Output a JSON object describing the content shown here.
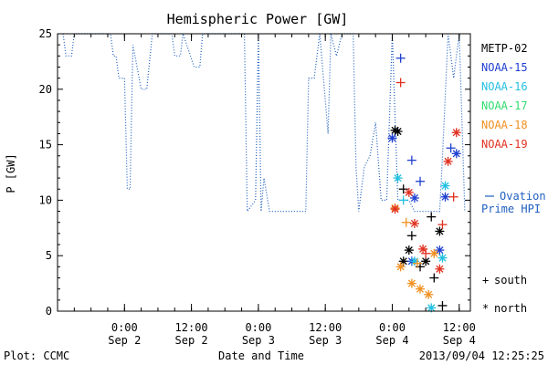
{
  "chart_data": {
    "type": "scatter",
    "title": "Hemispheric Power [GW]",
    "xlabel": "Date and Time",
    "ylabel": "P [GW]",
    "ylim": [
      0,
      25
    ],
    "yticks": [
      0,
      5,
      10,
      15,
      20,
      25
    ],
    "xlim": [
      "2013-09-01 12:00",
      "2013-09-04 14:00"
    ],
    "xticks": [
      {
        "time": "2013-09-02 00:00",
        "label": "0:00",
        "date": "Sep 2"
      },
      {
        "time": "2013-09-02 12:00",
        "label": "12:00",
        "date": "Sep 2"
      },
      {
        "time": "2013-09-03 00:00",
        "label": "0:00",
        "date": "Sep 3"
      },
      {
        "time": "2013-09-03 12:00",
        "label": "12:00",
        "date": "Sep 3"
      },
      {
        "time": "2013-09-04 00:00",
        "label": "0:00",
        "date": "Sep 4"
      },
      {
        "time": "2013-09-04 12:00",
        "label": "12:00",
        "date": "Sep 4"
      }
    ],
    "legend": {
      "placement": "right",
      "satellites": [
        {
          "name": "METP-02",
          "color": "#000000"
        },
        {
          "name": "NOAA-15",
          "color": "#1f3fd0"
        },
        {
          "name": "NOAA-16",
          "color": "#22c0e0"
        },
        {
          "name": "NOAA-17",
          "color": "#30dd70"
        },
        {
          "name": "NOAA-18",
          "color": "#f09020"
        },
        {
          "name": "NOAA-19",
          "color": "#e03020"
        }
      ],
      "ovation_label_1": "Ovation",
      "ovation_label_2": "Prime HPI",
      "ovation_color": "#1f5fbf",
      "south_symbol": "+",
      "south_label": "south",
      "north_symbol": "*",
      "north_label": "north"
    },
    "ovation_series": {
      "name": "Ovation Prime HPI",
      "style": "dotted",
      "points": [
        [
          "2013-09-01 13:00",
          25
        ],
        [
          "2013-09-01 13:30",
          23
        ],
        [
          "2013-09-01 14:30",
          23
        ],
        [
          "2013-09-01 15:00",
          25
        ],
        [
          "2013-09-01 21:30",
          25
        ],
        [
          "2013-09-01 22:00",
          23
        ],
        [
          "2013-09-01 22:30",
          23
        ],
        [
          "2013-09-01 23:00",
          21
        ],
        [
          "2013-09-02 00:00",
          21
        ],
        [
          "2013-09-02 00:30",
          11
        ],
        [
          "2013-09-02 01:00",
          11
        ],
        [
          "2013-09-02 01:30",
          24
        ],
        [
          "2013-09-02 03:00",
          20
        ],
        [
          "2013-09-02 04:00",
          20
        ],
        [
          "2013-09-02 05:00",
          25
        ],
        [
          "2013-09-02 08:30",
          25
        ],
        [
          "2013-09-02 09:00",
          23
        ],
        [
          "2013-09-02 10:00",
          23
        ],
        [
          "2013-09-02 10:30",
          25
        ],
        [
          "2013-09-02 12:30",
          22
        ],
        [
          "2013-09-02 13:30",
          22
        ],
        [
          "2013-09-02 14:00",
          25
        ],
        [
          "2013-09-02 21:30",
          25
        ],
        [
          "2013-09-02 22:00",
          9
        ],
        [
          "2013-09-02 23:30",
          10
        ],
        [
          "2013-09-03 00:00",
          25
        ],
        [
          "2013-09-03 00:30",
          9
        ],
        [
          "2013-09-03 01:00",
          12
        ],
        [
          "2013-09-03 02:00",
          9
        ],
        [
          "2013-09-03 08:30",
          9
        ],
        [
          "2013-09-03 09:00",
          21
        ],
        [
          "2013-09-03 10:00",
          21
        ],
        [
          "2013-09-03 11:00",
          25
        ],
        [
          "2013-09-03 12:30",
          16
        ],
        [
          "2013-09-03 13:00",
          25
        ],
        [
          "2013-09-03 14:00",
          23
        ],
        [
          "2013-09-03 15:00",
          25
        ],
        [
          "2013-09-03 17:00",
          25
        ],
        [
          "2013-09-03 17:30",
          13
        ],
        [
          "2013-09-03 18:00",
          9
        ],
        [
          "2013-09-03 19:00",
          13
        ],
        [
          "2013-09-03 20:00",
          14
        ],
        [
          "2013-09-03 21:00",
          17
        ],
        [
          "2013-09-03 22:00",
          10
        ],
        [
          "2013-09-03 23:00",
          10
        ],
        [
          "2013-09-04 00:00",
          25
        ],
        [
          "2013-09-04 01:00",
          10
        ],
        [
          "2013-09-04 03:00",
          10
        ],
        [
          "2013-09-04 04:00",
          9
        ],
        [
          "2013-09-04 08:30",
          9
        ],
        [
          "2013-09-04 09:00",
          14
        ],
        [
          "2013-09-04 10:00",
          25
        ],
        [
          "2013-09-04 11:00",
          21
        ],
        [
          "2013-09-04 12:00",
          25
        ],
        [
          "2013-09-04 13:00",
          9
        ]
      ]
    },
    "observations": [
      {
        "sat": "METP-02",
        "hemi": "north",
        "x": "2013-09-04 00:30",
        "y": 16.3
      },
      {
        "sat": "METP-02",
        "hemi": "north",
        "x": "2013-09-04 01:00",
        "y": 16.2
      },
      {
        "sat": "METP-02",
        "hemi": "south",
        "x": "2013-09-04 02:00",
        "y": 11.0
      },
      {
        "sat": "METP-02",
        "hemi": "north",
        "x": "2013-09-04 03:00",
        "y": 5.5
      },
      {
        "sat": "METP-02",
        "hemi": "south",
        "x": "2013-09-04 03:30",
        "y": 6.8
      },
      {
        "sat": "METP-02",
        "hemi": "north",
        "x": "2013-09-04 02:00",
        "y": 4.5
      },
      {
        "sat": "METP-02",
        "hemi": "south",
        "x": "2013-09-04 05:00",
        "y": 4.0
      },
      {
        "sat": "METP-02",
        "hemi": "north",
        "x": "2013-09-04 06:00",
        "y": 4.5
      },
      {
        "sat": "METP-02",
        "hemi": "south",
        "x": "2013-09-04 07:30",
        "y": 3.0
      },
      {
        "sat": "METP-02",
        "hemi": "north",
        "x": "2013-09-04 08:30",
        "y": 7.2
      },
      {
        "sat": "METP-02",
        "hemi": "south",
        "x": "2013-09-04 09:00",
        "y": 0.5
      },
      {
        "sat": "METP-02",
        "hemi": "south",
        "x": "2013-09-04 07:00",
        "y": 8.5
      },
      {
        "sat": "NOAA-15",
        "hemi": "south",
        "x": "2013-09-04 01:30",
        "y": 22.8
      },
      {
        "sat": "NOAA-15",
        "hemi": "north",
        "x": "2013-09-04 00:00",
        "y": 15.6
      },
      {
        "sat": "NOAA-15",
        "hemi": "south",
        "x": "2013-09-04 03:30",
        "y": 13.6
      },
      {
        "sat": "NOAA-15",
        "hemi": "south",
        "x": "2013-09-04 05:00",
        "y": 11.7
      },
      {
        "sat": "NOAA-15",
        "hemi": "north",
        "x": "2013-09-04 04:00",
        "y": 10.2
      },
      {
        "sat": "NOAA-15",
        "hemi": "north",
        "x": "2013-09-04 09:30",
        "y": 10.3
      },
      {
        "sat": "NOAA-15",
        "hemi": "south",
        "x": "2013-09-04 10:30",
        "y": 14.7
      },
      {
        "sat": "NOAA-15",
        "hemi": "north",
        "x": "2013-09-04 11:30",
        "y": 14.2
      },
      {
        "sat": "NOAA-15",
        "hemi": "north",
        "x": "2013-09-04 03:30",
        "y": 4.5
      },
      {
        "sat": "NOAA-15",
        "hemi": "north",
        "x": "2013-09-04 08:30",
        "y": 5.5
      },
      {
        "sat": "NOAA-16",
        "hemi": "north",
        "x": "2013-09-04 01:00",
        "y": 12.0
      },
      {
        "sat": "NOAA-16",
        "hemi": "south",
        "x": "2013-09-04 02:00",
        "y": 10.0
      },
      {
        "sat": "NOAA-16",
        "hemi": "north",
        "x": "2013-09-04 04:00",
        "y": 4.5
      },
      {
        "sat": "NOAA-16",
        "hemi": "north",
        "x": "2013-09-04 07:00",
        "y": 0.3
      },
      {
        "sat": "NOAA-16",
        "hemi": "north",
        "x": "2013-09-04 09:00",
        "y": 4.8
      },
      {
        "sat": "NOAA-16",
        "hemi": "north",
        "x": "2013-09-04 09:30",
        "y": 11.3
      },
      {
        "sat": "NOAA-18",
        "hemi": "north",
        "x": "2013-09-04 00:30",
        "y": 9.3
      },
      {
        "sat": "NOAA-18",
        "hemi": "south",
        "x": "2013-09-04 02:30",
        "y": 8.0
      },
      {
        "sat": "NOAA-18",
        "hemi": "north",
        "x": "2013-09-04 01:30",
        "y": 4.0
      },
      {
        "sat": "NOAA-18",
        "hemi": "north",
        "x": "2013-09-04 03:30",
        "y": 2.5
      },
      {
        "sat": "NOAA-18",
        "hemi": "north",
        "x": "2013-09-04 05:00",
        "y": 2.0
      },
      {
        "sat": "NOAA-18",
        "hemi": "north",
        "x": "2013-09-04 06:30",
        "y": 1.5
      },
      {
        "sat": "NOAA-18",
        "hemi": "north",
        "x": "2013-09-04 07:30",
        "y": 5.2
      },
      {
        "sat": "NOAA-18",
        "hemi": "south",
        "x": "2013-09-04 04:30",
        "y": 4.3
      },
      {
        "sat": "NOAA-19",
        "hemi": "south",
        "x": "2013-09-04 01:30",
        "y": 20.6
      },
      {
        "sat": "NOAA-19",
        "hemi": "north",
        "x": "2013-09-04 00:30",
        "y": 9.2
      },
      {
        "sat": "NOAA-19",
        "hemi": "north",
        "x": "2013-09-04 03:00",
        "y": 10.7
      },
      {
        "sat": "NOAA-19",
        "hemi": "north",
        "x": "2013-09-04 04:00",
        "y": 7.9
      },
      {
        "sat": "NOAA-19",
        "hemi": "north",
        "x": "2013-09-04 05:30",
        "y": 5.6
      },
      {
        "sat": "NOAA-19",
        "hemi": "south",
        "x": "2013-09-04 06:00",
        "y": 5.2
      },
      {
        "sat": "NOAA-19",
        "hemi": "north",
        "x": "2013-09-04 08:30",
        "y": 3.8
      },
      {
        "sat": "NOAA-19",
        "hemi": "south",
        "x": "2013-09-04 09:00",
        "y": 7.8
      },
      {
        "sat": "NOAA-19",
        "hemi": "north",
        "x": "2013-09-04 10:00",
        "y": 13.5
      },
      {
        "sat": "NOAA-19",
        "hemi": "north",
        "x": "2013-09-04 11:30",
        "y": 16.1
      },
      {
        "sat": "NOAA-19",
        "hemi": "south",
        "x": "2013-09-04 11:00",
        "y": 10.3
      }
    ]
  },
  "footer": {
    "plot_credit": "Plot: CCMC",
    "timestamp": "2013/09/04 12:25:25"
  }
}
